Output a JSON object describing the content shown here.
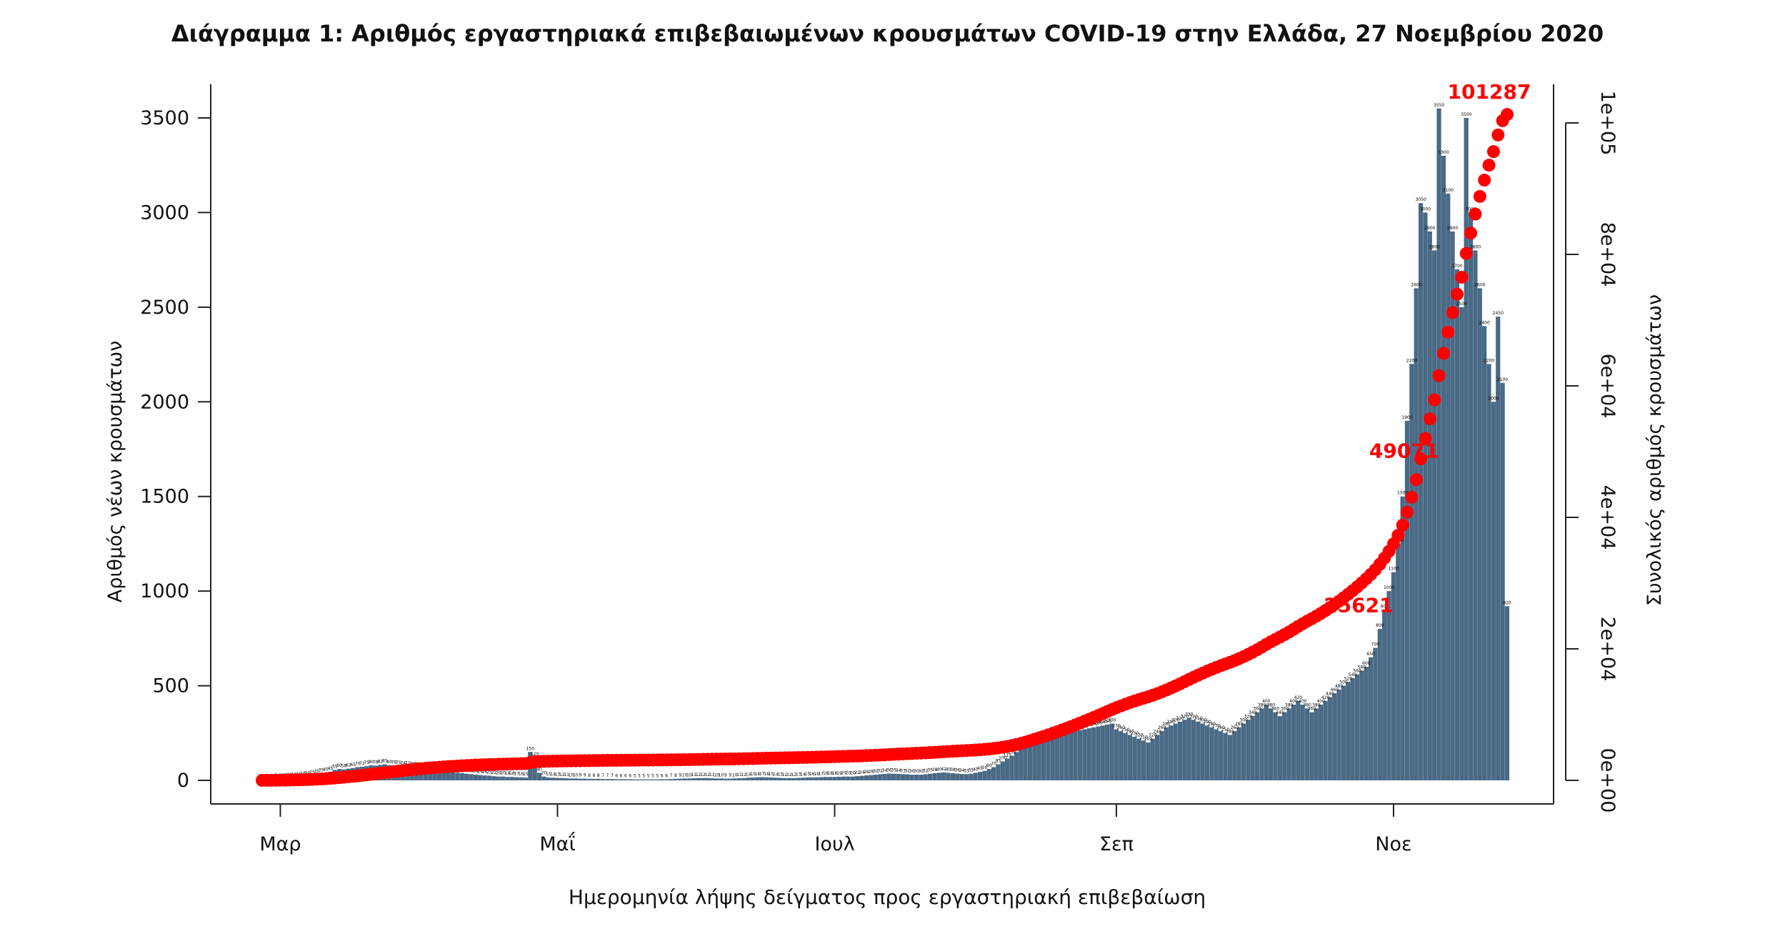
{
  "title": "Διάγραμμα 1: Αριθμός εργαστηριακά επιβεβαιωμένων κρουσμάτων COVID-19 στην Ελλάδα, 27 Νοεμβρίου 2020",
  "chart_data": {
    "type": "bar",
    "title": "Διάγραμμα 1: Αριθμός εργαστηριακά επιβεβαιωμένων κρουσμάτων COVID-19 στην Ελλάδα, 27 Νοεμβρίου 2020",
    "xlabel": "Ημερομηνία λήψης δείγματος προς εργαστηριακή επιβεβαίωση",
    "ylabel": "Αριθμός νέων κρουσμάτων",
    "y2label": "Συνολικός αριθμός κρουσμάτων",
    "x_ticks": [
      "Μαρ",
      "Μαΐ",
      "Ιουλ",
      "Σεπ",
      "Νοε"
    ],
    "x_tick_dates": [
      "2020-03-01",
      "2020-05-01",
      "2020-07-01",
      "2020-09-01",
      "2020-11-01"
    ],
    "x_range": [
      "2020-02-26",
      "2020-11-26"
    ],
    "ylim": [
      0,
      3700
    ],
    "yticks": [
      0,
      500,
      1000,
      1500,
      2000,
      2500,
      3000,
      3500
    ],
    "y2lim": [
      0,
      105000
    ],
    "y2ticks": [
      "0e+00",
      "2e+04",
      "4e+04",
      "6e+04",
      "8e+04",
      "1e+05"
    ],
    "y2tick_values": [
      0,
      20000,
      40000,
      60000,
      80000,
      100000
    ],
    "bar_color": "#4a6a86",
    "cum_color": "#ff0000",
    "bar_segments": [
      {
        "from": "2020-02-26",
        "to": "2020-03-07",
        "values": [
          3,
          4,
          5,
          7,
          8,
          10,
          12,
          14,
          16,
          18,
          20
        ]
      },
      {
        "from": "2020-03-08",
        "to": "2020-03-31",
        "values": [
          25,
          30,
          35,
          40,
          45,
          55,
          60,
          58,
          62,
          65,
          70,
          72,
          75,
          80,
          78,
          82,
          85,
          80,
          78,
          75,
          74,
          72,
          70,
          68
        ]
      },
      {
        "from": "2020-04-01",
        "to": "2020-04-30",
        "values": [
          65,
          60,
          55,
          52,
          50,
          48,
          45,
          42,
          40,
          38,
          35,
          33,
          30,
          28,
          26,
          25,
          22,
          20,
          20,
          18,
          18,
          17,
          16,
          15,
          150,
          120,
          40,
          20,
          15,
          14
        ]
      },
      {
        "from": "2020-05-01",
        "to": "2020-06-30",
        "values": [
          13,
          12,
          11,
          10,
          10,
          9,
          9,
          8,
          8,
          8,
          7,
          7,
          7,
          6,
          6,
          6,
          6,
          5,
          5,
          5,
          5,
          5,
          5,
          6,
          6,
          7,
          8,
          9,
          10,
          10,
          11,
          12,
          12,
          12,
          11,
          10,
          10,
          9,
          9,
          10,
          11,
          12,
          14,
          15,
          16,
          17,
          16,
          15,
          14,
          13,
          12,
          12,
          12,
          13,
          14,
          15,
          16,
          16,
          17,
          18,
          18
        ]
      },
      {
        "from": "2020-07-01",
        "to": "2020-07-31",
        "values": [
          18,
          19,
          20,
          20,
          20,
          22,
          24,
          26,
          28,
          30,
          32,
          34,
          36,
          35,
          34,
          33,
          32,
          30,
          30,
          30,
          32,
          35,
          38,
          40,
          42,
          40,
          38,
          36,
          34,
          33,
          35
        ]
      },
      {
        "from": "2020-08-01",
        "to": "2020-08-31",
        "values": [
          40,
          45,
          50,
          60,
          70,
          85,
          100,
          115,
          130,
          150,
          170,
          190,
          200,
          210,
          215,
          220,
          225,
          230,
          235,
          240,
          250,
          255,
          260,
          265,
          270,
          275,
          280,
          285,
          290,
          295,
          300
        ]
      },
      {
        "from": "2020-09-01",
        "to": "2020-09-30",
        "values": [
          270,
          260,
          250,
          240,
          230,
          220,
          210,
          200,
          220,
          240,
          260,
          280,
          290,
          300,
          310,
          320,
          330,
          320,
          310,
          300,
          290,
          280,
          270,
          260,
          250,
          240,
          260,
          280,
          300,
          320
        ]
      },
      {
        "from": "2020-10-01",
        "to": "2020-10-31",
        "values": [
          340,
          360,
          380,
          400,
          380,
          360,
          340,
          360,
          380,
          400,
          420,
          400,
          380,
          360,
          380,
          400,
          420,
          440,
          460,
          480,
          500,
          520,
          540,
          560,
          580,
          600,
          650,
          700,
          800,
          900,
          1000
        ]
      },
      {
        "from": "2020-11-01",
        "to": "2020-11-26",
        "values": [
          1100,
          1250,
          1500,
          1900,
          2200,
          2600,
          3050,
          3000,
          2900,
          2800,
          3550,
          3300,
          3100,
          2900,
          2700,
          2500,
          3500,
          3000,
          2800,
          2600,
          2400,
          2200,
          2000,
          2450,
          2100,
          920
        ]
      }
    ],
    "cumulative_labels": [
      {
        "date": "2020-10-30",
        "value": "25621"
      },
      {
        "date": "2020-11-09",
        "value": "49071"
      },
      {
        "date": "2020-11-26",
        "value": "101287"
      }
    ],
    "cumulative_final": 101287
  }
}
